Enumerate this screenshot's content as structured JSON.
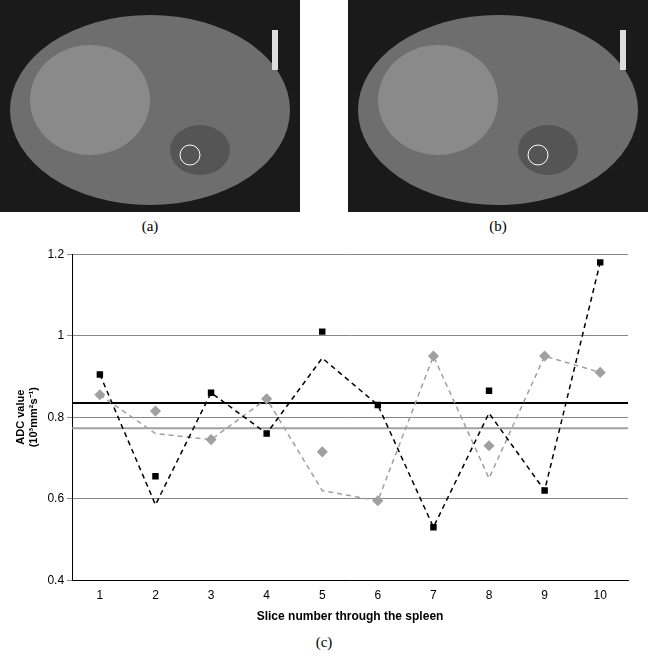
{
  "images": [
    {
      "label": "(a)"
    },
    {
      "label": "(b)"
    }
  ],
  "chart_data": {
    "type": "line",
    "caption": "(c)",
    "xlabel": "Slice number through the spleen",
    "ylabel": "ADC value",
    "ylabel_units": "(10³mm²s⁻¹)",
    "categories": [
      "1",
      "2",
      "3",
      "4",
      "5",
      "6",
      "7",
      "8",
      "9",
      "10"
    ],
    "series": [
      {
        "type": "line",
        "color": "#000000",
        "line_style": "dashed",
        "marker": "none",
        "values": [
          0.905,
          0.585,
          0.86,
          0.76,
          0.945,
          0.83,
          0.53,
          0.81,
          0.62,
          1.18
        ]
      },
      {
        "type": "scatter",
        "color": "#000000",
        "marker": "square",
        "values": [
          0.905,
          0.655,
          0.86,
          0.76,
          1.01,
          0.83,
          0.53,
          0.865,
          0.62,
          1.18
        ]
      },
      {
        "type": "line",
        "color": "#a0a0a0",
        "line_style": "dashed",
        "marker": "none",
        "values": [
          0.855,
          0.76,
          0.745,
          0.845,
          0.62,
          0.595,
          0.95,
          0.65,
          0.95,
          0.91
        ]
      },
      {
        "type": "scatter",
        "color": "#a0a0a0",
        "marker": "diamond",
        "values": [
          0.855,
          0.815,
          0.745,
          0.845,
          0.715,
          0.595,
          0.95,
          0.73,
          0.95,
          0.91
        ]
      }
    ],
    "reference_lines": [
      {
        "value": 0.835,
        "color": "#000000"
      },
      {
        "value": 0.773,
        "color": "#a0a0a0"
      }
    ],
    "ylim": [
      0.4,
      1.2
    ],
    "yticks": [
      0.4,
      0.6,
      0.8,
      1,
      1.2
    ],
    "grid": true
  }
}
